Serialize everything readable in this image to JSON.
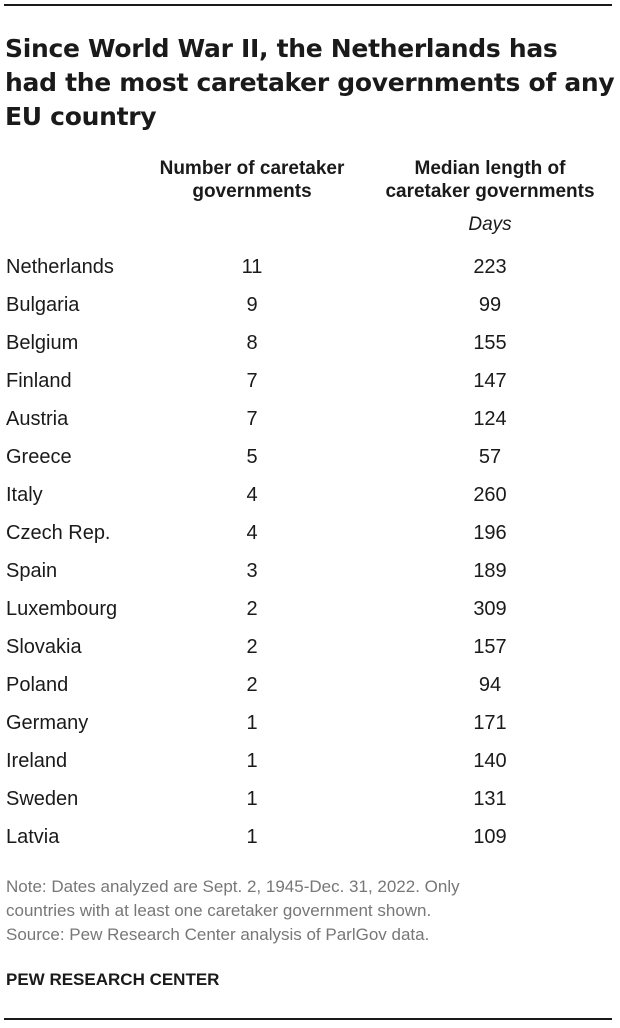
{
  "title": "Since World War II, the Netherlands has had the most caretaker governments of any EU country",
  "columns": {
    "count_header_line1": "Number of caretaker",
    "count_header_line2": "governments",
    "median_header_line1": "Median length of",
    "median_header_line2": "caretaker governments",
    "median_units": "Days"
  },
  "chart_data": {
    "type": "table",
    "title": "Since World War II, the Netherlands has had the most caretaker governments of any EU country",
    "columns": [
      "Number of caretaker governments",
      "Median length of caretaker governments (Days)"
    ],
    "rows": [
      {
        "country": "Netherlands",
        "count": 11,
        "median_days": 223
      },
      {
        "country": "Bulgaria",
        "count": 9,
        "median_days": 99
      },
      {
        "country": "Belgium",
        "count": 8,
        "median_days": 155
      },
      {
        "country": "Finland",
        "count": 7,
        "median_days": 147
      },
      {
        "country": "Austria",
        "count": 7,
        "median_days": 124
      },
      {
        "country": "Greece",
        "count": 5,
        "median_days": 57
      },
      {
        "country": "Italy",
        "count": 4,
        "median_days": 260
      },
      {
        "country": "Czech Rep.",
        "count": 4,
        "median_days": 196
      },
      {
        "country": "Spain",
        "count": 3,
        "median_days": 189
      },
      {
        "country": "Luxembourg",
        "count": 2,
        "median_days": 309
      },
      {
        "country": "Slovakia",
        "count": 2,
        "median_days": 157
      },
      {
        "country": "Poland",
        "count": 2,
        "median_days": 94
      },
      {
        "country": "Germany",
        "count": 1,
        "median_days": 171
      },
      {
        "country": "Ireland",
        "count": 1,
        "median_days": 140
      },
      {
        "country": "Sweden",
        "count": 1,
        "median_days": 131
      },
      {
        "country": "Latvia",
        "count": 1,
        "median_days": 109
      }
    ]
  },
  "notes": {
    "line1": "Note: Dates analyzed are Sept. 2, 1945-Dec. 31, 2022. Only",
    "line2": "countries with at least one caretaker government shown.",
    "line3": "Source: Pew Research Center analysis of ParlGov data."
  },
  "brand": "PEW RESEARCH CENTER"
}
